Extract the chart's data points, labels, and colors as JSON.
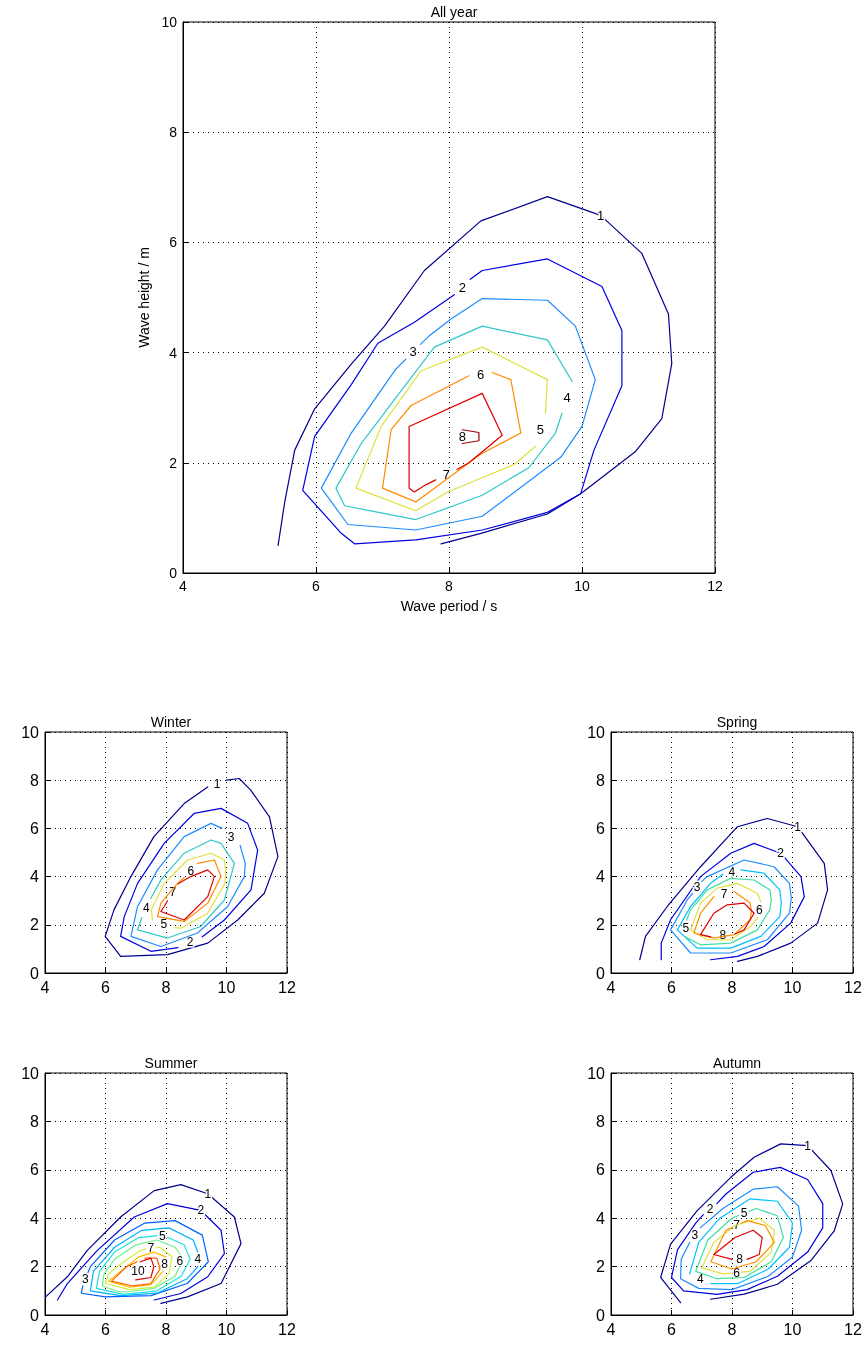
{
  "chart_data": [
    {
      "type": "line",
      "title": "All year",
      "xlabel": "Wave period / s",
      "ylabel": "Wave height / m",
      "xlim": [
        4,
        12
      ],
      "xticks": [
        4,
        6,
        8,
        10,
        12
      ],
      "ylim": [
        0,
        10
      ],
      "yticks": [
        0,
        2,
        4,
        6,
        8,
        10
      ],
      "grid": true,
      "marker": "none",
      "line_style": "solid",
      "series": [
        {
          "name": "1",
          "color": "#00008f",
          "x": [
            5.43,
            5.53,
            5.68,
            5.98,
            6.53,
            7.03,
            7.63,
            8.48,
            9.48,
            10.28,
            10.9,
            11.3,
            11.35,
            11.2,
            10.8,
            9.98,
            9.48,
            8.48,
            7.88
          ],
          "values": [
            0.5,
            1.29,
            2.23,
            2.98,
            3.79,
            4.48,
            5.49,
            6.39,
            6.83,
            6.49,
            5.8,
            4.7,
            3.8,
            2.8,
            2.2,
            1.44,
            1.07,
            0.72,
            0.53
          ]
        },
        {
          "name": "2",
          "color": "#0000e0",
          "x": [
            8.32,
            8.5,
            9.48,
            10.3,
            10.6,
            10.6,
            10.18,
            9.98,
            9.48,
            8.5,
            7.5,
            6.58,
            6.38,
            5.8,
            5.98,
            6.53,
            6.93,
            7.48,
            7.9,
            8.08
          ],
          "values": [
            5.33,
            5.49,
            5.7,
            5.2,
            4.4,
            3.4,
            2.23,
            1.44,
            1.1,
            0.78,
            0.6,
            0.53,
            0.72,
            1.5,
            2.48,
            3.42,
            4.17,
            4.55,
            4.9,
            5.05
          ]
        },
        {
          "name": "3",
          "color": "#1e8cff",
          "x": [
            7.57,
            7.7,
            8.03,
            8.5,
            9.48,
            9.9,
            10.2,
            10.0,
            9.68,
            8.5,
            7.5,
            6.48,
            6.08,
            6.53,
            7.2,
            7.35
          ],
          "values": [
            4.15,
            4.3,
            4.61,
            4.98,
            4.95,
            4.48,
            3.51,
            2.66,
            2.1,
            1.03,
            0.78,
            0.88,
            1.54,
            2.54,
            3.7,
            3.88
          ]
        },
        {
          "name": "4",
          "color": "#30c8c8",
          "x": [
            9.7,
            9.6,
            9.2,
            8.5,
            7.5,
            6.43,
            6.3,
            6.68,
            7.23,
            7.78,
            8.5,
            9.48,
            9.85
          ],
          "values": [
            2.9,
            2.54,
            1.91,
            1.41,
            0.97,
            1.22,
            1.54,
            2.35,
            3.23,
            4.1,
            4.48,
            4.23,
            3.48
          ]
        },
        {
          "name": "5",
          "color": "#e0e040",
          "x": [
            9.3,
            8.98,
            7.98,
            7.5,
            6.6,
            6.98,
            7.58,
            8.5,
            9.48,
            9.45
          ],
          "values": [
            2.3,
            1.97,
            1.47,
            1.13,
            1.54,
            2.66,
            3.67,
            4.1,
            3.51,
            2.9
          ]
        },
        {
          "name": "6",
          "color": "#ff8c00",
          "x": [
            8.65,
            8.93,
            9.08,
            8.48,
            7.5,
            7.0,
            7.13,
            7.43,
            8.3
          ],
          "values": [
            3.64,
            3.51,
            2.54,
            2.16,
            1.29,
            1.54,
            2.6,
            3.04,
            3.58
          ]
        },
        {
          "name": "7",
          "color": "#e00000",
          "x": [
            8.12,
            8.3,
            8.8,
            8.5,
            7.4,
            7.4,
            7.48,
            7.65,
            7.8
          ],
          "values": [
            1.88,
            2.0,
            2.5,
            3.26,
            2.66,
            1.54,
            1.47,
            1.6,
            1.69
          ]
        },
        {
          "name": "8",
          "color": "#a00000",
          "x": [
            8.2,
            8.45,
            8.45,
            8.2
          ],
          "values": [
            2.6,
            2.55,
            2.4,
            2.35
          ]
        }
      ]
    },
    {
      "type": "line",
      "title": "Winter",
      "xlim": [
        4,
        12
      ],
      "xticks": [
        4,
        6,
        8,
        10,
        12
      ],
      "ylim": [
        0,
        10
      ],
      "yticks": [
        0,
        2,
        4,
        6,
        8,
        10
      ],
      "grid": true,
      "marker": "none",
      "line_style": "solid",
      "series": [
        {
          "name": "1",
          "color": "#00008f",
          "x": [
            10.0,
            10.42,
            10.8,
            11.42,
            11.7,
            11.25,
            10.37,
            9.38,
            8.05,
            6.5,
            5.99,
            6.28,
            6.84,
            7.6,
            8.6,
            9.38
          ],
          "values": [
            8.0,
            8.07,
            7.59,
            6.48,
            4.83,
            3.31,
            2.2,
            1.24,
            0.76,
            0.69,
            1.52,
            2.62,
            4.0,
            5.66,
            7.03,
            7.72
          ]
        },
        {
          "name": "2",
          "color": "#0000e0",
          "x": [
            9.2,
            9.93,
            10.81,
            11.03,
            10.7,
            9.82,
            8.93,
            7.94,
            7.06,
            6.62,
            6.5,
            7.5,
            8.4
          ],
          "values": [
            1.5,
            2.2,
            3.45,
            5.1,
            6.21,
            6.83,
            6.62,
            5.38,
            3.72,
            2.34,
            1.52,
            0.9,
            1.05
          ]
        },
        {
          "name": "3",
          "color": "#1e8cff",
          "x": [
            10.45,
            10.62,
            10.59,
            10.04,
            9.04,
            7.83,
            6.84,
            7.06,
            7.72,
            8.6,
            9.49,
            9.85
          ],
          "values": [
            5.3,
            4.55,
            4.0,
            2.76,
            1.66,
            1.1,
            1.52,
            2.76,
            4.28,
            5.66,
            6.21,
            6.0
          ]
        },
        {
          "name": "4",
          "color": "#30c8c8",
          "x": [
            7.5,
            7.83,
            8.6,
            9.49,
            9.82,
            10.26,
            9.93,
            9.15,
            8.05,
            7.06,
            7.2
          ],
          "values": [
            3.1,
            3.86,
            4.97,
            5.52,
            5.38,
            4.55,
            3.03,
            1.93,
            1.45,
            1.79,
            2.3
          ]
        },
        {
          "name": "5",
          "color": "#e0e040",
          "x": [
            8.3,
            8.49,
            9.38,
            9.95,
            9.97,
            9.93,
            9.49,
            8.71,
            7.94,
            7.52,
            7.55
          ],
          "values": [
            1.88,
            1.86,
            2.48,
            3.72,
            4.2,
            4.69,
            4.97,
            4.69,
            3.72,
            2.62,
            2.2
          ]
        },
        {
          "name": "6",
          "color": "#ff8c00",
          "x": [
            9.04,
            9.6,
            9.82,
            9.38,
            8.6,
            7.72,
            7.83,
            8.38,
            8.6
          ],
          "values": [
            4.55,
            4.69,
            4.0,
            2.9,
            2.14,
            2.34,
            2.9,
            3.72,
            3.95
          ]
        },
        {
          "name": "7",
          "color": "#e00000",
          "x": [
            8.05,
            7.94,
            7.83,
            8.6,
            9.38,
            9.6,
            9.38,
            8.82,
            8.4
          ],
          "values": [
            3.0,
            2.76,
            2.55,
            2.2,
            3.17,
            4.0,
            4.28,
            4.0,
            3.7
          ]
        }
      ]
    },
    {
      "type": "line",
      "title": "Spring",
      "xlim": [
        4,
        12
      ],
      "xticks": [
        4,
        6,
        8,
        10,
        12
      ],
      "ylim": [
        0,
        10
      ],
      "yticks": [
        0,
        2,
        4,
        6,
        8,
        10
      ],
      "grid": true,
      "marker": "none",
      "line_style": "solid",
      "series": [
        {
          "name": "1",
          "color": "#00008f",
          "x": [
            4.95,
            5.14,
            5.86,
            6.96,
            8.18,
            9.17,
            10.17,
            11.05,
            11.16,
            10.83,
            9.94,
            8.84,
            8.18
          ],
          "values": [
            0.55,
            1.52,
            2.76,
            4.41,
            6.07,
            6.41,
            6.07,
            4.55,
            3.45,
            2.07,
            1.24,
            0.69,
            0.48
          ]
        },
        {
          "name": "2",
          "color": "#0000e0",
          "x": [
            5.66,
            5.66,
            5.97,
            6.96,
            7.96,
            8.73,
            9.61,
            10.28,
            10.39,
            9.94,
            9.06,
            8.18,
            7.29
          ],
          "values": [
            0.55,
            1.24,
            2.21,
            4.0,
            4.97,
            5.38,
            4.97,
            4.0,
            3.17,
            2.07,
            1.1,
            0.69,
            0.55
          ]
        },
        {
          "name": "3",
          "color": "#1e8cff",
          "x": [
            7.0,
            7.18,
            8.4,
            9.39,
            9.9,
            9.96,
            9.9,
            9.17,
            7.96,
            6.63,
            5.97,
            6.52,
            6.7
          ],
          "values": [
            3.8,
            4.0,
            4.69,
            4.41,
            3.72,
            3.1,
            2.48,
            1.38,
            0.83,
            0.83,
            1.79,
            3.03,
            3.3
          ]
        },
        {
          "name": "4",
          "color": "#00c0ff",
          "x": [
            8.29,
            9.06,
            9.58,
            9.63,
            9.58,
            8.95,
            7.96,
            6.85,
            6.19,
            6.63,
            7.29,
            7.7
          ],
          "values": [
            4.28,
            4.14,
            3.45,
            2.9,
            2.34,
            1.52,
            1.03,
            1.03,
            1.79,
            2.76,
            3.72,
            4.1
          ]
        },
        {
          "name": "5",
          "color": "#40e0a0",
          "x": [
            6.5,
            6.63,
            7.18,
            7.96,
            8.73,
            9.25,
            9.3,
            9.25,
            8.84,
            7.96,
            6.96,
            6.45
          ],
          "values": [
            2.2,
            2.62,
            3.45,
            3.93,
            3.86,
            3.45,
            3.0,
            2.62,
            1.79,
            1.24,
            1.17,
            1.5
          ]
        },
        {
          "name": "6",
          "color": "#e0e040",
          "x": [
            8.85,
            8.62,
            7.96,
            7.18,
            6.63,
            6.96,
            7.51,
            8.18,
            8.84,
            8.95
          ],
          "values": [
            2.3,
            1.93,
            1.38,
            1.38,
            1.79,
            2.9,
            3.52,
            3.72,
            3.31,
            2.95
          ]
        },
        {
          "name": "7",
          "color": "#ff9000",
          "x": [
            7.4,
            6.96,
            6.74,
            7.4,
            8.07,
            8.6,
            8.64,
            8.6,
            8.07
          ],
          "values": [
            3.17,
            2.48,
            1.66,
            1.45,
            1.59,
            2.21,
            2.55,
            2.9,
            3.38
          ]
        },
        {
          "name": "8",
          "color": "#e00000",
          "x": [
            8.1,
            8.4,
            8.73,
            8.4,
            7.84,
            7.4,
            6.96,
            7.3
          ],
          "values": [
            1.62,
            1.79,
            2.48,
            2.9,
            2.83,
            2.48,
            1.59,
            1.5
          ]
        }
      ]
    },
    {
      "type": "line",
      "title": "Summer",
      "xlim": [
        4,
        12
      ],
      "xticks": [
        4,
        6,
        8,
        10,
        12
      ],
      "ylim": [
        0,
        10
      ],
      "yticks": [
        0,
        2,
        4,
        6,
        8,
        10
      ],
      "grid": true,
      "marker": "none",
      "line_style": "solid",
      "series": [
        {
          "name": "1",
          "color": "#00008f",
          "x": [
            4.02,
            4.74,
            5.4,
            6.5,
            7.61,
            8.49,
            9.38,
            10.26,
            10.48,
            9.82,
            8.71,
            7.83
          ],
          "values": [
            0.75,
            1.58,
            2.67,
            4.05,
            5.14,
            5.39,
            5.01,
            4.05,
            2.95,
            1.3,
            0.75,
            0.48
          ]
        },
        {
          "name": "2",
          "color": "#0000e0",
          "x": [
            4.41,
            4.74,
            5.73,
            6.95,
            8.05,
            9.15,
            9.82,
            9.93,
            9.38,
            8.49,
            7.61
          ],
          "values": [
            0.62,
            1.3,
            2.67,
            4.05,
            4.6,
            4.32,
            3.5,
            2.54,
            1.58,
            0.89,
            0.62
          ]
        },
        {
          "name": "3",
          "color": "#0060ff",
          "x": [
            5.42,
            5.5,
            6.3,
            7.3,
            8.3,
            9.2,
            9.4,
            8.7,
            7.5,
            6.0,
            5.2,
            5.25
          ],
          "values": [
            1.75,
            2.0,
            3.1,
            3.8,
            3.9,
            3.3,
            2.2,
            1.3,
            0.8,
            0.75,
            0.9,
            1.2
          ]
        },
        {
          "name": "4",
          "color": "#00b0ff",
          "x": [
            9.05,
            8.7,
            7.7,
            6.5,
            5.5,
            5.6,
            6.3,
            7.2,
            8.1,
            8.9,
            9.05
          ],
          "values": [
            2.0,
            1.5,
            0.9,
            0.8,
            1.0,
            1.8,
            2.8,
            3.5,
            3.6,
            3.1,
            2.6
          ]
        },
        {
          "name": "5",
          "color": "#20e0e0",
          "x": [
            7.7,
            7.1,
            6.3,
            5.8,
            5.7,
            6.6,
            7.7,
            8.5,
            8.8,
            8.6,
            8.05
          ],
          "values": [
            3.28,
            3.2,
            2.6,
            1.8,
            1.1,
            0.85,
            1.0,
            1.6,
            2.3,
            2.9,
            3.21
          ]
        },
        {
          "name": "6",
          "color": "#70f090",
          "x": [
            8.47,
            8.3,
            7.7,
            7.0,
            6.3,
            5.95,
            5.9,
            6.4,
            6.7,
            7.6,
            8.3,
            8.45
          ],
          "values": [
            2.5,
            2.8,
            3.1,
            2.9,
            2.3,
            1.7,
            1.2,
            0.98,
            0.95,
            1.1,
            1.6,
            2.0
          ]
        },
        {
          "name": "7",
          "color": "#d0f040",
          "x": [
            7.67,
            7.8,
            8.2,
            8.1,
            7.6,
            6.8,
            6.0,
            6.1,
            6.6,
            7.2,
            7.33
          ],
          "values": [
            2.78,
            2.8,
            2.4,
            1.7,
            1.15,
            1.05,
            1.3,
            1.7,
            2.2,
            2.7,
            2.72
          ]
        },
        {
          "name": "8",
          "color": "#ffc000",
          "x": [
            8.0,
            7.6,
            7.1,
            6.6,
            6.1,
            6.8,
            7.5,
            7.9
          ],
          "values": [
            2.4,
            2.6,
            2.4,
            1.9,
            1.4,
            1.15,
            1.25,
            1.8
          ]
        },
        {
          "color": "#ff6000",
          "x": [
            7.3,
            7.7,
            7.8,
            7.5,
            6.9,
            6.2,
            6.7,
            7.05
          ],
          "values": [
            2.35,
            2.35,
            1.9,
            1.3,
            1.2,
            1.4,
            2.0,
            2.2
          ]
        },
        {
          "name": "10",
          "color": "#e00000",
          "x": [
            7.0,
            7.5,
            7.6,
            7.5,
            7.15
          ],
          "values": [
            1.45,
            1.55,
            2.0,
            2.35,
            2.2
          ]
        }
      ]
    },
    {
      "type": "line",
      "title": "Autumn",
      "xlim": [
        4,
        12
      ],
      "xticks": [
        4,
        6,
        8,
        10,
        12
      ],
      "ylim": [
        0,
        10
      ],
      "yticks": [
        0,
        2,
        4,
        6,
        8,
        10
      ],
      "grid": true,
      "marker": "none",
      "line_style": "solid",
      "series": [
        {
          "name": "1",
          "color": "#00008f",
          "x": [
            6.3,
            5.64,
            5.97,
            6.85,
            7.96,
            8.73,
            9.61,
            10.5,
            11.27,
            11.66,
            11.38,
            10.6,
            9.5,
            8.4,
            7.29
          ],
          "values": [
            0.51,
            1.55,
            2.93,
            4.31,
            5.69,
            6.52,
            7.07,
            7.0,
            5.97,
            4.59,
            3.48,
            2.24,
            1.27,
            0.86,
            0.65
          ]
        },
        {
          "name": "2",
          "color": "#0000e0",
          "x": [
            7.5,
            7.8,
            8.7,
            9.6,
            10.5,
            11.0,
            11.0,
            10.5,
            9.5,
            8.5,
            7.5,
            6.4,
            6.0,
            6.2,
            6.8,
            7.05
          ],
          "values": [
            4.6,
            5.0,
            5.9,
            6.1,
            5.6,
            4.6,
            3.6,
            2.6,
            1.6,
            1.05,
            0.85,
            1.0,
            1.55,
            2.7,
            3.8,
            4.15
          ]
        },
        {
          "name": "3",
          "color": "#1e8cff",
          "x": [
            6.95,
            7.7,
            8.7,
            9.5,
            10.2,
            10.3,
            10.0,
            9.2,
            8.0,
            6.9,
            6.3,
            6.32,
            6.6
          ],
          "values": [
            3.6,
            4.4,
            5.2,
            5.3,
            4.5,
            3.5,
            2.4,
            1.6,
            1.05,
            1.1,
            1.5,
            2.3,
            3.0
          ]
        },
        {
          "name": "4",
          "color": "#00c0ff",
          "x": [
            7.3,
            8.2,
            9.2,
            9.9,
            10.0,
            9.5,
            8.6,
            7.6,
            6.9,
            6.6
          ],
          "values": [
            1.3,
            1.3,
            1.9,
            2.8,
            3.8,
            4.7,
            4.8,
            4.0,
            3.0,
            1.7
          ]
        },
        {
          "name": "5",
          "color": "#40e0a0",
          "x": [
            8.22,
            8.0,
            7.2,
            6.8,
            7.5,
            8.4,
            9.3,
            9.7,
            9.5,
            8.8,
            8.58
          ],
          "values": [
            4.11,
            4.0,
            3.1,
            1.8,
            1.5,
            1.55,
            2.2,
            3.2,
            4.1,
            4.4,
            4.29
          ]
        },
        {
          "name": "6",
          "color": "#e0e040",
          "x": [
            8.32,
            8.6,
            9.3,
            9.4,
            8.9,
            8.1,
            7.4,
            7.0,
            7.7,
            7.98
          ],
          "values": [
            1.77,
            1.8,
            2.6,
            3.5,
            4.0,
            3.7,
            3.0,
            1.95,
            1.7,
            1.73
          ]
        },
        {
          "name": "7",
          "color": "#ff9000",
          "x": [
            8.3,
            8.5,
            9.1,
            9.4,
            8.8,
            8.0,
            7.3,
            7.8,
            8.0
          ],
          "values": [
            3.79,
            3.9,
            3.7,
            3.0,
            2.2,
            1.9,
            2.2,
            3.5,
            3.61
          ]
        },
        {
          "name": "8",
          "color": "#e00000",
          "x": [
            8.5,
            8.9,
            9.0,
            8.7,
            8.1,
            7.4,
            8.0
          ],
          "values": [
            2.3,
            2.5,
            3.2,
            3.5,
            3.2,
            2.5,
            2.3
          ]
        }
      ]
    }
  ]
}
